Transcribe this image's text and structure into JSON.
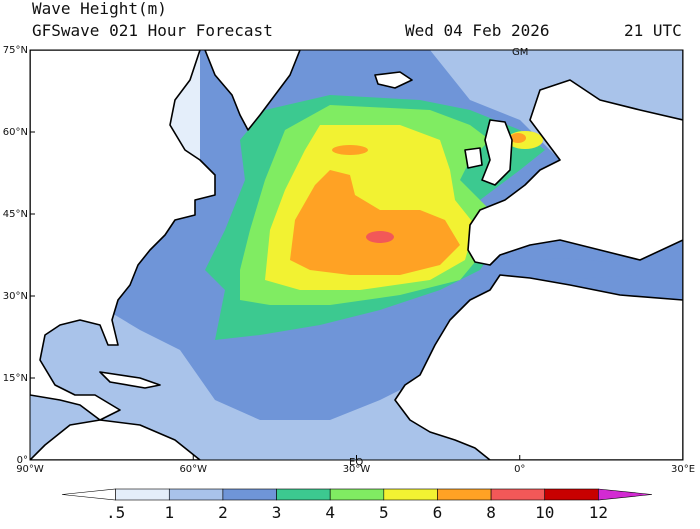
{
  "header": {
    "title": "Wave Height(m)",
    "subtitle": "GFSwave 021 Hour Forecast",
    "date": "Wed 04 Feb 2026",
    "time": "21 UTC"
  },
  "map": {
    "lat_labels": [
      "75°N",
      "60°N",
      "45°N",
      "30°N",
      "15°N",
      "0°"
    ],
    "lon_labels": [
      "90°W",
      "60°W",
      "30°W",
      "0°",
      "30°E"
    ],
    "markers": [
      "GM",
      "EQ"
    ]
  },
  "legend": {
    "labels": [
      ".5",
      "1",
      "2",
      "3",
      "4",
      "5",
      "6",
      "8",
      "10",
      "12"
    ],
    "colors": [
      "#ffffff",
      "#e4eefa",
      "#a9c3ea",
      "#6f95d8",
      "#3cc990",
      "#80ec62",
      "#f2f232",
      "#ffa224",
      "#f25858",
      "#c80000",
      "#d22ad2"
    ]
  }
}
